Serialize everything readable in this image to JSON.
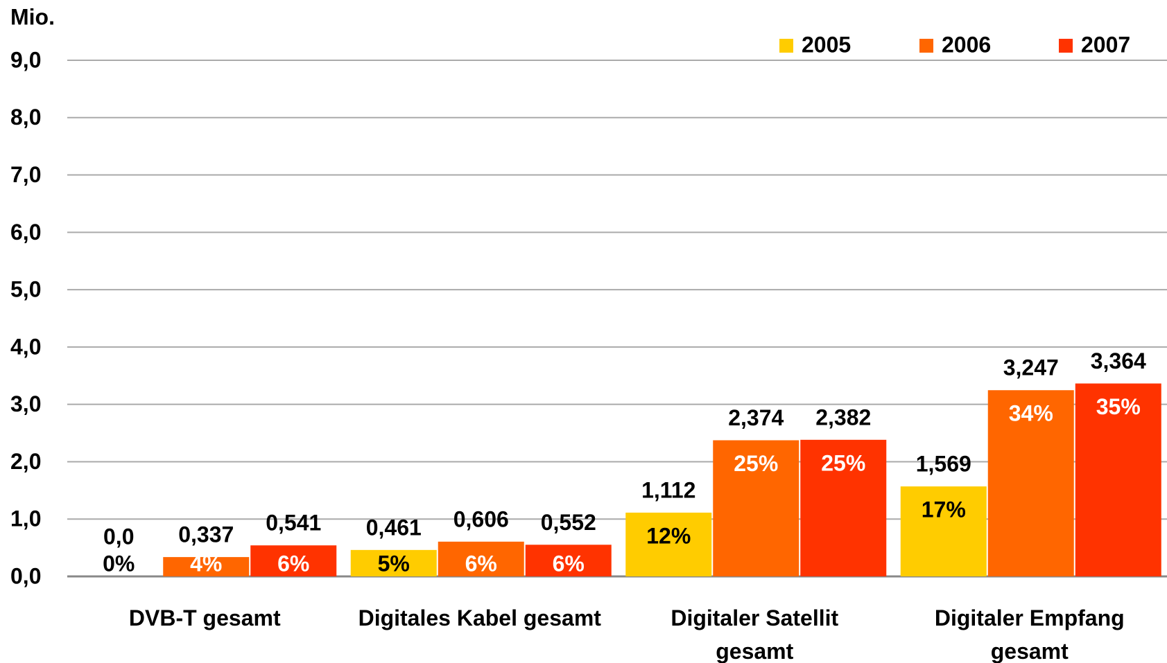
{
  "chart_data": {
    "type": "bar",
    "y_axis_label": "Mio.",
    "categories": [
      "DVB-T gesamt",
      "Digitales Kabel gesamt",
      "Digitaler Satellit gesamt",
      "Digitaler Empfang gesamt"
    ],
    "series": [
      {
        "name": "2005",
        "color": "#ffcc00",
        "values": [
          0,
          0.461,
          1.112,
          1.569
        ],
        "value_labels": [
          "0,0",
          "0,461",
          "1,112",
          "1,569"
        ],
        "share_labels": [
          "0%",
          "5%",
          "12%",
          "17%"
        ],
        "share_label_color": "#000000"
      },
      {
        "name": "2006",
        "color": "#ff6600",
        "values": [
          0.337,
          0.606,
          2.374,
          3.247
        ],
        "value_labels": [
          "0,337",
          "0,606",
          "2,374",
          "3,247"
        ],
        "share_labels": [
          "4%",
          "6%",
          "25%",
          "34%"
        ],
        "share_label_color": "#ffffff"
      },
      {
        "name": "2007",
        "color": "#ff3300",
        "values": [
          0.541,
          0.552,
          2.382,
          3.364
        ],
        "value_labels": [
          "0,541",
          "0,552",
          "2,382",
          "3,364"
        ],
        "share_labels": [
          "6%",
          "6%",
          "25%",
          "35%"
        ],
        "share_label_color": "#ffffff"
      }
    ],
    "ylim": [
      0,
      9
    ],
    "yticks": [
      {
        "value": 0,
        "label": "0,0"
      },
      {
        "value": 1,
        "label": "1,0"
      },
      {
        "value": 2,
        "label": "2,0"
      },
      {
        "value": 3,
        "label": "3,0"
      },
      {
        "value": 4,
        "label": "4,0"
      },
      {
        "value": 5,
        "label": "5,0"
      },
      {
        "value": 6,
        "label": "6,0"
      },
      {
        "value": 7,
        "label": "7,0"
      },
      {
        "value": 8,
        "label": "8,0"
      },
      {
        "value": 9,
        "label": "9,0"
      }
    ],
    "grid": true,
    "legend": "top-right"
  }
}
